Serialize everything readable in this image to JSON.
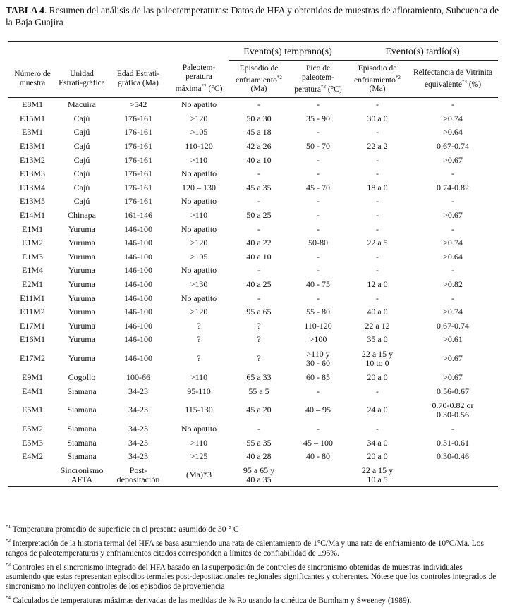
{
  "title": {
    "label": "TABLA 4",
    "text": ". Resumen del análisis de las paleotemperaturas: Datos de HFA y obtenidos de muestras de afloramiento, Subcuenca de la Baja Guajira"
  },
  "groups": {
    "early": "Evento(s) temprano(s)",
    "late": "Evento(s) tardío(s)"
  },
  "headers": [
    {
      "text": "Número de muestra",
      "sup": ""
    },
    {
      "text": "Unidad Estrati-gráfica",
      "sup": ""
    },
    {
      "text": "Edad Estrati-gráfica (Ma)",
      "sup": ""
    },
    {
      "text": "Paleotem-peratura máxima",
      "sup": "*2",
      "tail": " (°C)"
    },
    {
      "text": "Episodio de enfriamiento",
      "sup": "*2",
      "tail": " (Ma)"
    },
    {
      "text": "Pico de paleotem-peratura",
      "sup": "*2",
      "tail": " (°C)"
    },
    {
      "text": "Episodio de enfriamiento",
      "sup": "*2",
      "tail": " (Ma)"
    },
    {
      "text": "Relfectancia de Vitrinita equivalente",
      "sup": "*4",
      "tail": " (%)"
    }
  ],
  "rows": [
    [
      "E8M1",
      "Macuira",
      ">542",
      "No apatito",
      "-",
      "-",
      "-",
      "-"
    ],
    [
      "E15M1",
      "Cajú",
      "176-161",
      ">120",
      "50 a 30",
      "35 - 90",
      "30 a 0",
      ">0.74"
    ],
    [
      "E3M1",
      "Cajú",
      "176-161",
      ">105",
      "45 a 18",
      "-",
      "-",
      ">0.64"
    ],
    [
      "E13M1",
      "Cajú",
      "176-161",
      "110-120",
      "42 a 26",
      "50 - 70",
      "22 a 2",
      "0.67-0.74"
    ],
    [
      "E13M2",
      "Cajú",
      "176-161",
      ">110",
      "40 a 10",
      "-",
      "-",
      ">0.67"
    ],
    [
      "E13M3",
      "Cajú",
      "176-161",
      "No apatito",
      "-",
      "-",
      "-",
      "-"
    ],
    [
      "E13M4",
      "Cajú",
      "176-161",
      "120 – 130",
      "45 a 35",
      "45 - 70",
      "18 a 0",
      "0.74-0.82"
    ],
    [
      "E13M5",
      "Cajú",
      "176-161",
      "No apatito",
      "-",
      "-",
      "-",
      "-"
    ],
    [
      "E14M1",
      "Chinapa",
      "161-146",
      ">110",
      "50 a 25",
      "-",
      "-",
      ">0.67"
    ],
    [
      "E1M1",
      "Yuruma",
      "146-100",
      "No apatito",
      "-",
      "-",
      "-",
      "-"
    ],
    [
      "E1M2",
      "Yuruma",
      "146-100",
      ">120",
      "40 a 22",
      "50-80",
      "22 a 5",
      ">0.74"
    ],
    [
      "E1M3",
      "Yuruma",
      "146-100",
      ">105",
      "40 a 10",
      "-",
      "-",
      ">0.64"
    ],
    [
      "E1M4",
      "Yuruma",
      "146-100",
      "No apatito",
      "-",
      "-",
      "-",
      "-"
    ],
    [
      "E2M1",
      "Yuruma",
      "146-100",
      ">130",
      "40 a 25",
      "40 - 75",
      "12 a 0",
      ">0.82"
    ],
    [
      "E11M1",
      "Yuruma",
      "146-100",
      "No apatito",
      "-",
      "-",
      "-",
      "-"
    ],
    [
      "E11M2",
      "Yuruma",
      "146-100",
      ">120",
      "95 a 65",
      "55 - 80",
      "40 a 0",
      ">0.74"
    ],
    [
      "E17M1",
      "Yuruma",
      "146-100",
      "?",
      "?",
      "110-120",
      "22 a 12",
      "0.67-0.74"
    ],
    [
      "E16M1",
      "Yuruma",
      "146-100",
      "?",
      "?",
      ">100",
      "35 a 0",
      ">0.61"
    ],
    [
      "E17M2",
      "Yuruma",
      "146-100",
      "?",
      "?",
      ">110  y\n30 - 60",
      "22 a 15  y\n10 to 0",
      ">0.67"
    ],
    [
      "E9M1",
      "Cogollo",
      "100-66",
      ">110",
      "65 a 33",
      "60 - 85",
      "20 a 0",
      ">0.67"
    ],
    [
      "E4M1",
      "Siamana",
      "34-23",
      "95-110",
      "55 a 5",
      "-",
      "-",
      "0.56-0.67"
    ],
    [
      "E5M1",
      "Siamana",
      "34-23",
      "115-130",
      "45 a 20",
      "40 – 95",
      "24 a 0",
      "0.70-0.82  or\n0.30-0.56"
    ],
    [
      "E5M2",
      "Siamana",
      "34-23",
      "No apatito",
      "-",
      "-",
      "-",
      "-"
    ],
    [
      "E5M3",
      "Siamana",
      "34-23",
      ">110",
      "55 a 35",
      "45 – 100",
      "34 a 0",
      "0.31-0.61"
    ],
    [
      "E4M2",
      "Siamana",
      "34-23",
      ">125",
      "40 a 28",
      "40 - 80",
      "20 a 0",
      "0.30-0.46"
    ]
  ],
  "sync_row": [
    "",
    "Sincronismo\nAFTA",
    "Post-\ndepositación",
    "(Ma)*3",
    "95 a 65  y\n40 a 35",
    "",
    "22 a 15  y\n10 a 5",
    ""
  ],
  "notes": [
    {
      "mark": "*1",
      "text": " Temperatura promedio de superficie en el presente asumido de 30 ° C"
    },
    {
      "mark": "*2",
      "text": " Interpretación de la historia termal del HFA se basa asumiendo una rata de calentamiento de 1°C/Ma y una rata de enfriamiento de 10°C/Ma. Los rangos de paleotemperaturas y enfriamientos citados corresponden a límites de confiabilidad de ±95%."
    },
    {
      "mark": "*3",
      "text": " Controles en el sincronismo integrado del HFA basado en la superposición de controles de sincronismo obtenidas de muestras individuales asumiendo que estas representan episodios termales post-depositacionales regionales significantes y coherentes. Nótese que los controles integrados de sincronismo no incluyen controles de los episodios de proveniencia"
    },
    {
      "mark": "*4",
      "text": " Calculados de temperaturas máximas derivadas de las medidas de % Ro usando la cinética de Burnham y Sweeney (1989)."
    }
  ]
}
